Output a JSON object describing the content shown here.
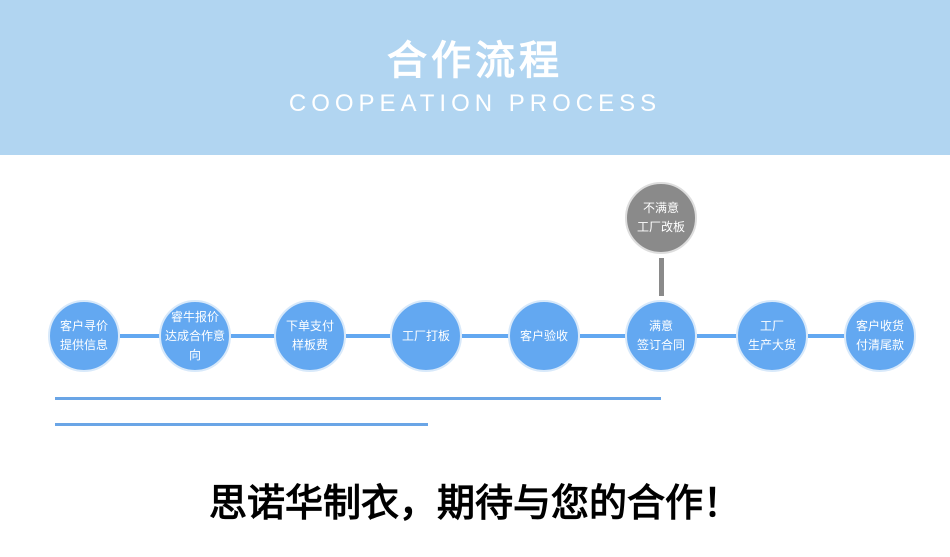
{
  "header": {
    "title": "合作流程",
    "subtitle": "COOPEATION PROCESS"
  },
  "steps": [
    {
      "l1": "客户寻价",
      "l2": "提供信息"
    },
    {
      "l1": "睿牛报价",
      "l2": "达成合作意向"
    },
    {
      "l1": "下单支付",
      "l2": "样板费"
    },
    {
      "l1": "工厂打板",
      "l2": ""
    },
    {
      "l1": "客户验收",
      "l2": ""
    },
    {
      "l1": "满意",
      "l2": "签订合同"
    },
    {
      "l1": "工厂",
      "l2": "生产大货"
    },
    {
      "l1": "客户收货",
      "l2": "付清尾款"
    }
  ],
  "branch": {
    "l1": "不满意",
    "l2": "工厂改板"
  },
  "slogan": "思诺华制衣，期待与您的合作！",
  "colors": {
    "header": "#b1d5f1",
    "step": "#63a8f1",
    "branch": "#8a8a8a"
  }
}
